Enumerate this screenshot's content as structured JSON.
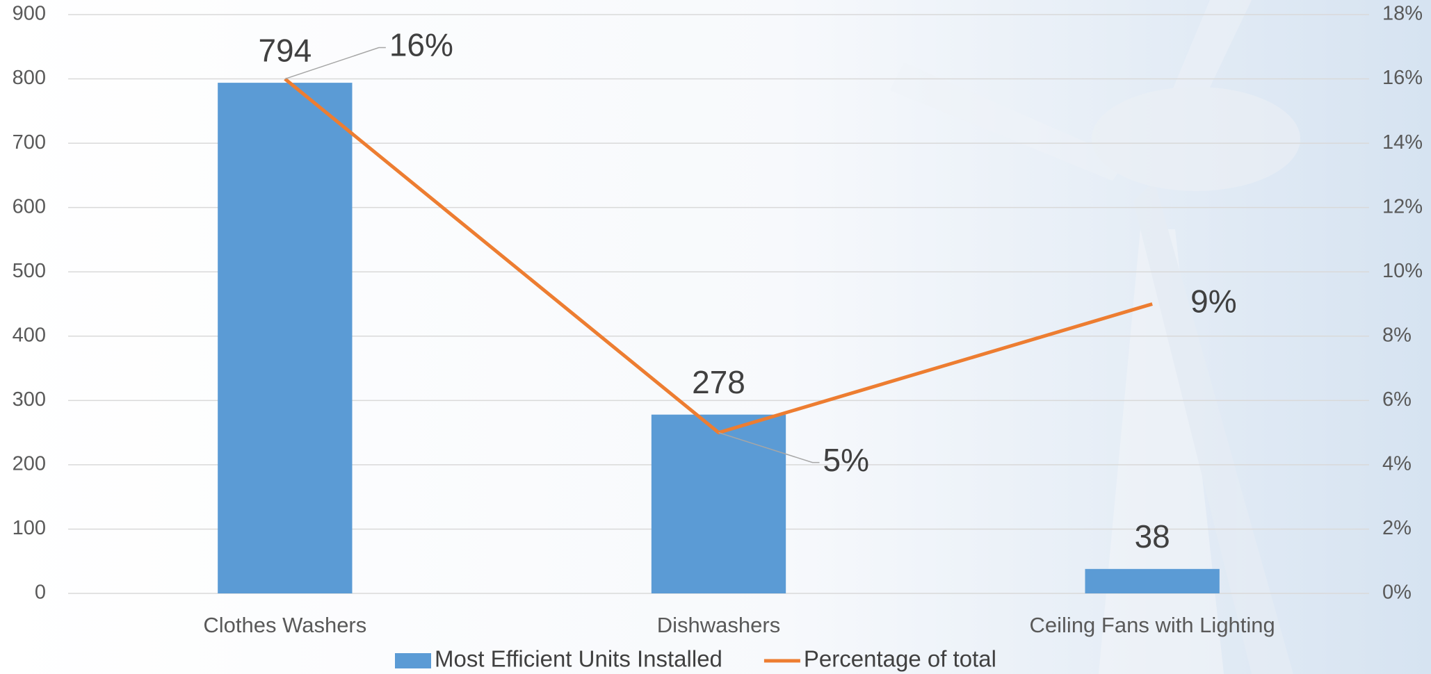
{
  "chart_data": {
    "type": "bar",
    "categories": [
      "Clothes Washers",
      "Dishwashers",
      "Ceiling Fans with Lighting"
    ],
    "series": [
      {
        "name": "Most Efficient Units Installed",
        "type": "bar",
        "color": "#5b9bd5",
        "values": [
          794,
          278,
          38
        ]
      },
      {
        "name": "Percentage of total",
        "type": "line",
        "axis": "y2",
        "color": "#ed7d31",
        "values": [
          16,
          5,
          9
        ],
        "value_labels": [
          "16%",
          "5%",
          "9%"
        ]
      }
    ],
    "ylim": [
      0,
      900
    ],
    "yticks": [
      0,
      100,
      200,
      300,
      400,
      500,
      600,
      700,
      800,
      900
    ],
    "y2lim": [
      0,
      18
    ],
    "y2ticks": [
      {
        "value": 0,
        "label": "0%"
      },
      {
        "value": 2,
        "label": "2%"
      },
      {
        "value": 4,
        "label": "4%"
      },
      {
        "value": 6,
        "label": "6%"
      },
      {
        "value": 8,
        "label": "8%"
      },
      {
        "value": 10,
        "label": "10%"
      },
      {
        "value": 12,
        "label": "12%"
      },
      {
        "value": 14,
        "label": "14%"
      },
      {
        "value": 16,
        "label": "16%"
      },
      {
        "value": 18,
        "label": "18%"
      }
    ],
    "grid": true,
    "legend": "bottom"
  }
}
